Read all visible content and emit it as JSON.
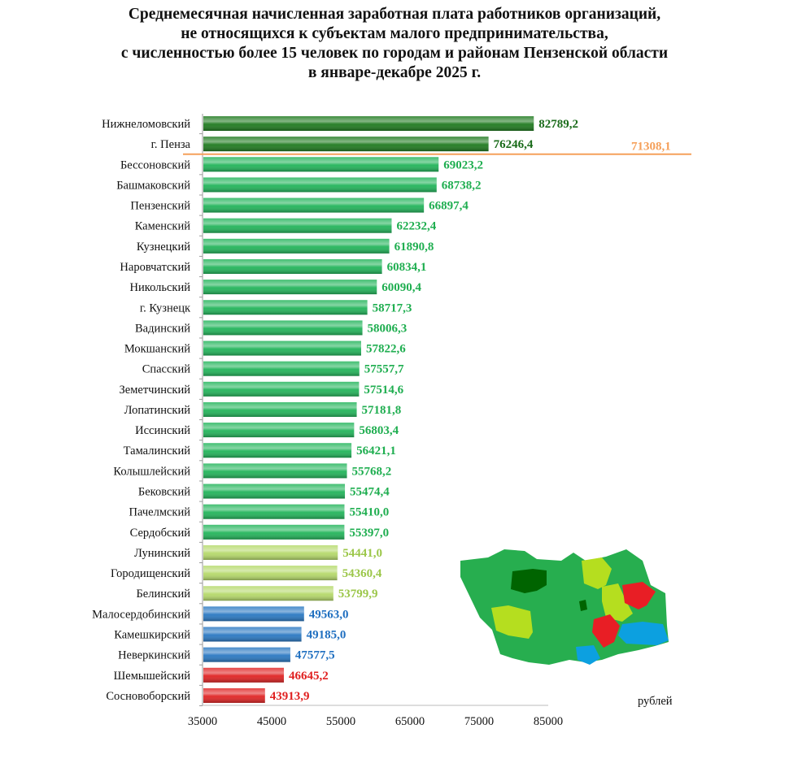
{
  "chart_data": {
    "type": "bar",
    "orientation": "horizontal",
    "title": [
      "Среднемесячная начисленная заработная плата работников организаций,",
      "не относящихся к субъектам малого предпринимательства,",
      "с численностью более 15 человек по городам и районам Пензенской области",
      "в январе-декабре 2025 г."
    ],
    "unit_label": "рублей",
    "xlim": [
      35000,
      85000
    ],
    "xticks": [
      "35000",
      "45000",
      "55000",
      "65000",
      "75000",
      "85000"
    ],
    "reference_line": {
      "value": 71308.1,
      "label": "71308,1",
      "color": "#f5a05a"
    },
    "categories": [
      "Нижнеломовский",
      "г. Пенза",
      "Бессоновский",
      "Башмаковский",
      "Пензенский",
      "Каменский",
      "Кузнецкий",
      "Наровчатский",
      "Никольский",
      "г. Кузнецк",
      "Вадинский",
      "Мокшанский",
      "Спасский",
      "Земетчинский",
      "Лопатинский",
      "Иссинский",
      "Тамалинский",
      "Колышлейский",
      "Бековский",
      "Пачелмский",
      "Сердобский",
      "Лунинский",
      "Городищенский",
      "Белинский",
      "Малосердобинский",
      "Камешкирский",
      "Неверкинский",
      "Шемышейский",
      "Сосновоборский"
    ],
    "values": [
      82789.2,
      76246.4,
      69023.2,
      68738.2,
      66897.4,
      62232.4,
      61890.8,
      60834.1,
      60090.4,
      58717.3,
      58006.3,
      57822.6,
      57557.7,
      57514.6,
      57181.8,
      56803.4,
      56421.1,
      55768.2,
      55474.4,
      55410.0,
      55397.0,
      54441.0,
      54360.4,
      53799.9,
      49563.0,
      49185.0,
      47577.5,
      46645.2,
      43913.9
    ],
    "value_labels": [
      "82789,2",
      "76246,4",
      "69023,2",
      "68738,2",
      "66897,4",
      "62232,4",
      "61890,8",
      "60834,1",
      "60090,4",
      "58717,3",
      "58006,3",
      "57822,6",
      "57557,7",
      "57514,6",
      "57181,8",
      "56803,4",
      "56421,1",
      "55768,2",
      "55474,4",
      "55410,0",
      "55397,0",
      "54441,0",
      "54360,4",
      "53799,9",
      "49563,0",
      "49185,0",
      "47577,5",
      "46645,2",
      "43913,9"
    ],
    "groups": [
      "dark",
      "dark",
      "green",
      "green",
      "green",
      "green",
      "green",
      "green",
      "green",
      "green",
      "green",
      "green",
      "green",
      "green",
      "green",
      "green",
      "green",
      "green",
      "green",
      "green",
      "green",
      "lime",
      "lime",
      "lime",
      "blue",
      "blue",
      "blue",
      "red",
      "red"
    ],
    "group_colors": {
      "dark": {
        "bar": "#1f7a1f",
        "label": "#1a6b1a"
      },
      "green": {
        "bar": "#22b45a",
        "label": "#1fae50"
      },
      "lime": {
        "bar": "#b5d96a",
        "label": "#9cc74a"
      },
      "blue": {
        "bar": "#2a78c2",
        "label": "#1f6fc0"
      },
      "red": {
        "bar": "#e02424",
        "label": "#e02020"
      }
    }
  }
}
